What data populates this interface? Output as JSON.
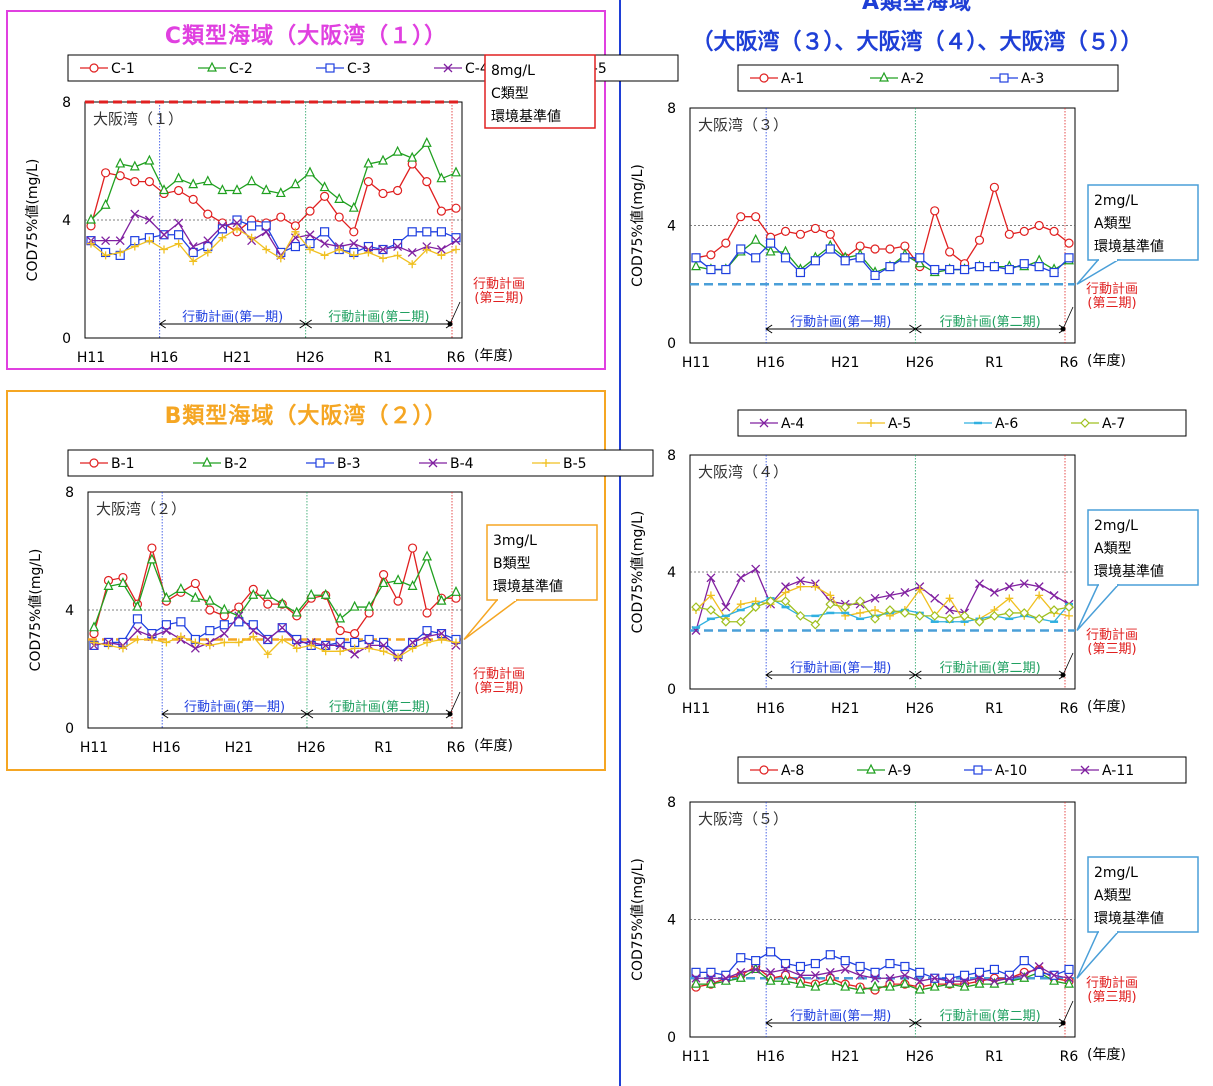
{
  "section_c": {
    "title": "C類型海域（大阪湾（１））",
    "color": "#E040E0"
  },
  "section_b": {
    "title": "B類型海域（大阪湾（２））",
    "color": "#F5A623"
  },
  "section_a": {
    "title_line1": "A類型海域",
    "title_line2": "（大阪湾（３）、大阪湾（４）、大阪湾（５））",
    "color": "#1F3FD6"
  },
  "common": {
    "ylabel": "COD75%値(mg/L)",
    "year_unit": "(年度)",
    "x_tick_labels": [
      "H11",
      "H16",
      "H21",
      "H26",
      "R1",
      "R6"
    ],
    "y_ticks": [
      0,
      4,
      8
    ],
    "phase1_label": "行動計画(第一期)",
    "phase2_label": "行動計画(第二期)",
    "phase3_label_line1": "行動計画",
    "phase3_label_line2": "(第三期)"
  },
  "chart_data": [
    {
      "id": "c1",
      "type": "line",
      "area_label": "大阪湾（１）",
      "x": [
        "H11",
        "H12",
        "H13",
        "H14",
        "H15",
        "H16",
        "H17",
        "H18",
        "H19",
        "H20",
        "H21",
        "H22",
        "H23",
        "H24",
        "H25",
        "H26",
        "H27",
        "H28",
        "H29",
        "H30",
        "R1",
        "R2",
        "R3",
        "R4",
        "R5",
        "R6"
      ],
      "ylim": [
        0,
        8
      ],
      "standard": {
        "value": 8,
        "line1": "8mg/L",
        "line2": "C類型",
        "line3": "環境基準値",
        "color": "#E02020"
      },
      "series": [
        {
          "name": "C-1",
          "color": "#E02020",
          "marker": "circle",
          "values": [
            3.8,
            5.6,
            5.5,
            5.3,
            5.3,
            4.9,
            5.0,
            4.7,
            4.2,
            3.9,
            3.6,
            4.0,
            3.9,
            4.1,
            3.8,
            4.3,
            4.8,
            4.1,
            3.6,
            5.3,
            4.9,
            5.0,
            5.9,
            5.3,
            4.3,
            4.4
          ]
        },
        {
          "name": "C-2",
          "color": "#20A020",
          "marker": "triangle",
          "values": [
            4.0,
            4.5,
            5.9,
            5.8,
            6.0,
            5.0,
            5.4,
            5.2,
            5.3,
            5.0,
            5.0,
            5.3,
            5.0,
            4.9,
            5.2,
            5.6,
            5.1,
            4.7,
            4.4,
            5.9,
            6.0,
            6.3,
            6.1,
            6.6,
            5.4,
            5.6
          ]
        },
        {
          "name": "C-3",
          "color": "#2040E0",
          "marker": "square",
          "values": [
            3.3,
            2.9,
            2.8,
            3.3,
            3.4,
            3.5,
            3.5,
            2.9,
            3.1,
            3.7,
            4.0,
            3.8,
            3.8,
            2.9,
            3.1,
            3.2,
            3.6,
            3.0,
            2.9,
            3.1,
            3.0,
            3.2,
            3.6,
            3.6,
            3.6,
            3.4
          ]
        },
        {
          "name": "C-4",
          "color": "#8020A0",
          "marker": "x",
          "values": [
            3.3,
            3.3,
            3.3,
            4.2,
            4.0,
            3.5,
            3.9,
            3.1,
            3.3,
            3.8,
            3.9,
            3.3,
            3.6,
            2.8,
            3.4,
            3.5,
            3.2,
            3.1,
            3.2,
            3.0,
            3.0,
            3.1,
            2.9,
            3.1,
            3.0,
            3.3
          ]
        },
        {
          "name": "C-5",
          "color": "#F0C020",
          "marker": "plus",
          "values": [
            3.2,
            2.8,
            2.9,
            3.1,
            3.3,
            3.0,
            3.2,
            2.6,
            2.9,
            3.4,
            3.7,
            3.4,
            3.0,
            2.7,
            3.6,
            3.0,
            2.8,
            3.0,
            2.8,
            2.9,
            2.7,
            2.8,
            2.5,
            3.0,
            2.8,
            3.0
          ]
        }
      ]
    },
    {
      "id": "b1",
      "type": "line",
      "area_label": "大阪湾（２）",
      "x": [
        "H11",
        "H12",
        "H13",
        "H14",
        "H15",
        "H16",
        "H17",
        "H18",
        "H19",
        "H20",
        "H21",
        "H22",
        "H23",
        "H24",
        "H25",
        "H26",
        "H27",
        "H28",
        "H29",
        "H30",
        "R1",
        "R2",
        "R3",
        "R4",
        "R5",
        "R6"
      ],
      "ylim": [
        0,
        8
      ],
      "standard": {
        "value": 3,
        "line1": "3mg/L",
        "line2": "B類型",
        "line3": "環境基準値",
        "color": "#F5A623"
      },
      "series": [
        {
          "name": "B-1",
          "color": "#E02020",
          "marker": "circle",
          "values": [
            3.2,
            5.0,
            5.1,
            4.2,
            6.1,
            4.3,
            4.6,
            4.9,
            4.0,
            3.8,
            4.1,
            4.7,
            4.2,
            4.2,
            3.8,
            4.4,
            4.5,
            3.3,
            3.2,
            3.9,
            5.2,
            4.3,
            6.1,
            3.9,
            4.4,
            4.4
          ]
        },
        {
          "name": "B-2",
          "color": "#20A020",
          "marker": "triangle",
          "values": [
            3.4,
            4.8,
            4.9,
            4.1,
            5.7,
            4.4,
            4.7,
            4.4,
            4.3,
            4.0,
            3.8,
            4.5,
            4.5,
            4.2,
            3.9,
            4.5,
            4.5,
            3.7,
            4.1,
            4.1,
            4.9,
            5.0,
            4.8,
            5.8,
            4.3,
            4.6
          ]
        },
        {
          "name": "B-3",
          "color": "#2040E0",
          "marker": "square",
          "values": [
            2.8,
            2.9,
            2.9,
            3.7,
            3.2,
            3.5,
            3.6,
            3.0,
            3.3,
            3.5,
            3.6,
            3.5,
            3.0,
            3.4,
            3.0,
            2.8,
            2.8,
            2.9,
            2.9,
            3.0,
            2.9,
            2.5,
            2.9,
            3.3,
            3.2,
            3.0
          ]
        },
        {
          "name": "B-4",
          "color": "#8020A0",
          "marker": "x",
          "values": [
            2.8,
            2.9,
            2.8,
            3.3,
            3.1,
            3.3,
            3.0,
            2.7,
            2.9,
            3.2,
            3.8,
            3.3,
            3.0,
            3.4,
            2.9,
            2.9,
            2.8,
            2.8,
            2.5,
            2.8,
            2.8,
            2.4,
            2.9,
            3.1,
            3.2,
            2.8
          ]
        },
        {
          "name": "B-5",
          "color": "#F0C020",
          "marker": "plus",
          "values": [
            2.9,
            2.8,
            2.7,
            3.0,
            3.0,
            2.9,
            3.1,
            2.9,
            2.8,
            2.9,
            2.9,
            3.1,
            2.5,
            3.0,
            2.7,
            2.8,
            2.6,
            2.6,
            2.7,
            2.7,
            2.6,
            2.4,
            2.7,
            2.9,
            3.0,
            2.9
          ]
        }
      ]
    },
    {
      "id": "a3",
      "type": "line",
      "area_label": "大阪湾（３）",
      "x": [
        "H11",
        "H12",
        "H13",
        "H14",
        "H15",
        "H16",
        "H17",
        "H18",
        "H19",
        "H20",
        "H21",
        "H22",
        "H23",
        "H24",
        "H25",
        "H26",
        "H27",
        "H28",
        "H29",
        "H30",
        "R1",
        "R2",
        "R3",
        "R4",
        "R5",
        "R6"
      ],
      "ylim": [
        0,
        8
      ],
      "standard": {
        "value": 2,
        "line1": "2mg/L",
        "line2": "A類型",
        "line3": "環境基準値",
        "color": "#4A9FD8"
      },
      "series": [
        {
          "name": "A-1",
          "color": "#E02020",
          "marker": "circle",
          "values": [
            2.9,
            3.0,
            3.4,
            4.3,
            4.3,
            3.6,
            3.8,
            3.7,
            3.9,
            3.7,
            2.9,
            3.3,
            3.2,
            3.2,
            3.3,
            2.6,
            4.5,
            3.1,
            2.7,
            3.5,
            5.3,
            3.7,
            3.8,
            4.0,
            3.8,
            3.4
          ]
        },
        {
          "name": "A-2",
          "color": "#20A020",
          "marker": "triangle",
          "values": [
            2.6,
            2.5,
            2.5,
            3.1,
            3.5,
            3.1,
            3.1,
            2.5,
            2.9,
            3.3,
            2.9,
            3.0,
            2.4,
            2.6,
            3.0,
            2.7,
            2.4,
            2.5,
            2.5,
            2.6,
            2.6,
            2.6,
            2.6,
            2.8,
            2.5,
            2.8
          ]
        },
        {
          "name": "A-3",
          "color": "#2040E0",
          "marker": "square",
          "values": [
            2.9,
            2.5,
            2.5,
            3.2,
            2.9,
            3.4,
            2.9,
            2.4,
            2.8,
            3.2,
            2.8,
            2.9,
            2.3,
            2.6,
            2.9,
            2.9,
            2.5,
            2.5,
            2.5,
            2.6,
            2.6,
            2.5,
            2.7,
            2.6,
            2.4,
            2.9
          ]
        }
      ]
    },
    {
      "id": "a4",
      "type": "line",
      "area_label": "大阪湾（４）",
      "x": [
        "H11",
        "H12",
        "H13",
        "H14",
        "H15",
        "H16",
        "H17",
        "H18",
        "H19",
        "H20",
        "H21",
        "H22",
        "H23",
        "H24",
        "H25",
        "H26",
        "H27",
        "H28",
        "H29",
        "H30",
        "R1",
        "R2",
        "R3",
        "R4",
        "R5",
        "R6"
      ],
      "ylim": [
        0,
        8
      ],
      "standard": {
        "value": 2,
        "line1": "2mg/L",
        "line2": "A類型",
        "line3": "環境基準値",
        "color": "#4A9FD8"
      },
      "series": [
        {
          "name": "A-4",
          "color": "#8020A0",
          "marker": "x",
          "values": [
            2.0,
            3.8,
            2.8,
            3.8,
            4.1,
            2.9,
            3.5,
            3.7,
            3.6,
            3.0,
            2.9,
            2.9,
            3.1,
            3.2,
            3.3,
            3.5,
            3.1,
            2.7,
            2.6,
            3.6,
            3.3,
            3.5,
            3.6,
            3.5,
            3.2,
            2.9
          ]
        },
        {
          "name": "A-5",
          "color": "#F0C020",
          "marker": "plus",
          "values": [
            2.7,
            3.2,
            2.4,
            2.9,
            3.0,
            2.9,
            3.3,
            3.5,
            3.5,
            3.2,
            2.5,
            2.6,
            2.7,
            2.5,
            2.7,
            3.4,
            2.5,
            3.1,
            2.3,
            2.4,
            2.7,
            3.1,
            2.5,
            3.2,
            2.6,
            2.5
          ]
        },
        {
          "name": "A-6",
          "color": "#30B0E0",
          "marker": "dash",
          "values": [
            2.1,
            2.4,
            2.5,
            2.7,
            2.9,
            3.1,
            2.8,
            2.5,
            2.5,
            2.6,
            2.6,
            2.4,
            2.5,
            2.6,
            2.7,
            2.6,
            2.3,
            2.3,
            2.3,
            2.4,
            2.5,
            2.4,
            2.5,
            2.4,
            2.3,
            2.9
          ]
        },
        {
          "name": "A-7",
          "color": "#A0C020",
          "marker": "diamond",
          "values": [
            2.8,
            2.7,
            2.3,
            2.3,
            2.8,
            3.0,
            3.0,
            2.5,
            2.2,
            2.9,
            2.8,
            3.0,
            2.4,
            2.7,
            2.6,
            2.5,
            2.5,
            2.4,
            2.5,
            2.3,
            2.5,
            2.6,
            2.6,
            2.4,
            2.7,
            2.8
          ]
        }
      ]
    },
    {
      "id": "a5",
      "type": "line",
      "area_label": "大阪湾（５）",
      "x": [
        "H11",
        "H12",
        "H13",
        "H14",
        "H15",
        "H16",
        "H17",
        "H18",
        "H19",
        "H20",
        "H21",
        "H22",
        "H23",
        "H24",
        "H25",
        "H26",
        "H27",
        "H28",
        "H29",
        "H30",
        "R1",
        "R2",
        "R3",
        "R4",
        "R5",
        "R6"
      ],
      "ylim": [
        0,
        8
      ],
      "standard": {
        "value": 2,
        "line1": "2mg/L",
        "line2": "A類型",
        "line3": "環境基準値",
        "color": "#4A9FD8"
      },
      "series": [
        {
          "name": "A-8",
          "color": "#E02020",
          "marker": "circle",
          "values": [
            1.7,
            1.8,
            2.0,
            2.1,
            2.4,
            2.0,
            2.1,
            1.9,
            1.8,
            2.0,
            1.8,
            1.7,
            1.6,
            1.8,
            1.8,
            1.7,
            1.8,
            1.8,
            1.8,
            1.9,
            2.0,
            2.0,
            2.2,
            2.3,
            2.0,
            1.9
          ]
        },
        {
          "name": "A-9",
          "color": "#20A020",
          "marker": "triangle",
          "values": [
            1.8,
            1.8,
            1.9,
            2.0,
            2.3,
            1.9,
            1.9,
            1.8,
            1.7,
            1.9,
            1.7,
            1.6,
            1.7,
            1.7,
            1.8,
            1.6,
            1.7,
            1.8,
            1.7,
            1.8,
            1.8,
            1.9,
            2.0,
            2.2,
            1.9,
            1.8
          ]
        },
        {
          "name": "A-10",
          "color": "#2040E0",
          "marker": "square",
          "values": [
            2.2,
            2.2,
            2.1,
            2.7,
            2.6,
            2.9,
            2.5,
            2.4,
            2.5,
            2.8,
            2.6,
            2.4,
            2.2,
            2.5,
            2.4,
            2.2,
            2.0,
            2.0,
            2.1,
            2.2,
            2.3,
            2.1,
            2.6,
            2.2,
            2.1,
            2.3
          ]
        },
        {
          "name": "A-11",
          "color": "#8020A0",
          "marker": "x",
          "values": [
            2.0,
            2.0,
            2.0,
            2.2,
            2.3,
            2.2,
            2.3,
            2.1,
            2.1,
            2.2,
            2.3,
            2.1,
            2.0,
            2.0,
            2.1,
            1.9,
            2.0,
            1.9,
            1.9,
            2.0,
            1.9,
            2.0,
            2.1,
            2.4,
            2.1,
            2.0
          ]
        }
      ]
    }
  ]
}
